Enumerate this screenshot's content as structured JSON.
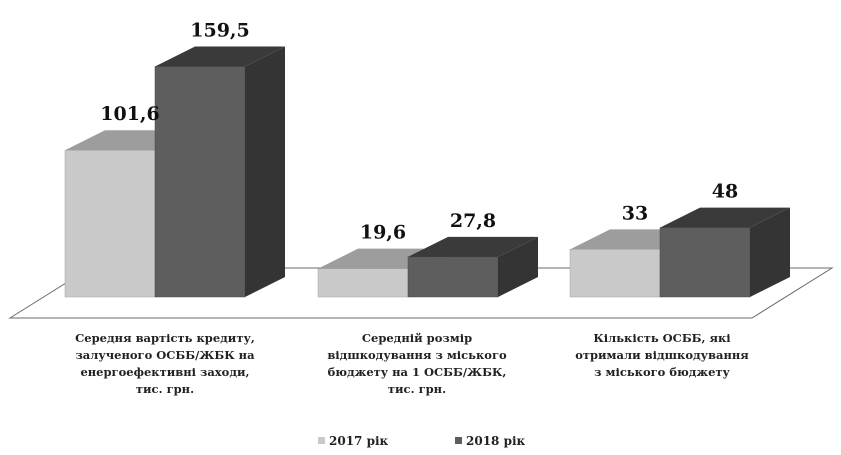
{
  "chart_data": {
    "type": "bar",
    "categories": [
      [
        "Середня вартість кредиту,",
        "залученого ОСББ/ЖБК на",
        "енергоефективні заходи,",
        "тис. грн."
      ],
      [
        "Середній розмір",
        "відшкодування з міського",
        "бюджету на 1 ОСББ/ЖБК,",
        "тис. грн."
      ],
      [
        "Кількість ОСББ, які",
        "отримали відшкодування",
        "з міського бюджету"
      ]
    ],
    "series": [
      {
        "name": "2017 рік",
        "values": [
          101.6,
          19.6,
          33
        ],
        "labels": [
          "101,6",
          "19,6",
          "33"
        ]
      },
      {
        "name": "2018 рік",
        "values": [
          159.5,
          27.8,
          48
        ],
        "labels": [
          "159,5",
          "27,8",
          "48"
        ]
      }
    ],
    "colors": {
      "2017 рік": "#c9c9c9",
      "2018 рік": "#5e5e5e",
      "floor": "#ffffff",
      "floor_edge": "#6a6a6a"
    },
    "grid": false,
    "legend_position": "bottom"
  }
}
